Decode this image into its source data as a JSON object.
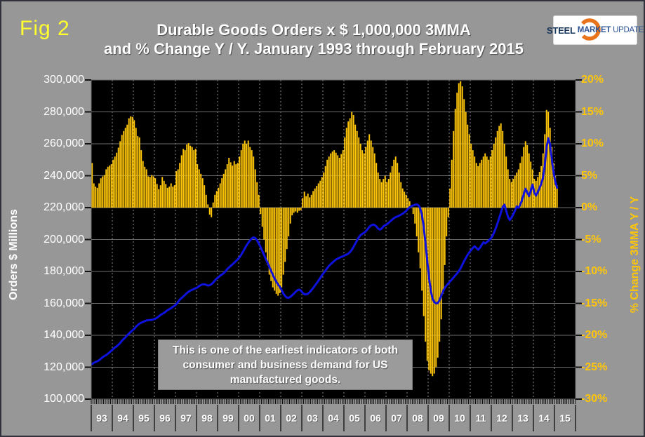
{
  "fig_label": "Fig 2",
  "title": {
    "line1": "Durable Goods Orders x $ 1,000,000 3MMA",
    "line2": "and % Change Y / Y. January 1993 through February 2015"
  },
  "logo": {
    "steel": "STEEL",
    "market": "MARKET",
    "update": "UPDATE"
  },
  "axes": {
    "left": {
      "label": "Orders $ Millions",
      "ticks": [
        "300,000",
        "280,000",
        "260,000",
        "240,000",
        "220,000",
        "200,000",
        "180,000",
        "160,000",
        "140,000",
        "120,000",
        "100,000"
      ]
    },
    "right": {
      "label": "% Change 3MMA Y / Y",
      "ticks": [
        "20%",
        "15%",
        "10%",
        "5%",
        "0%",
        "-5%",
        "-10%",
        "-15%",
        "-20%",
        "-25%",
        "-30%"
      ]
    },
    "x": {
      "year_labels": [
        "93",
        "94",
        "95",
        "96",
        "97",
        "98",
        "99",
        "00",
        "01",
        "02",
        "03",
        "04",
        "05",
        "06",
        "07",
        "08",
        "09",
        "10",
        "11",
        "12",
        "13",
        "14",
        "15"
      ]
    }
  },
  "annotation": {
    "line1": "This is one of the earliest indicators of both",
    "line2": "consumer and business demand for US",
    "line3": "manufactured goods."
  },
  "colors": {
    "background": "#979797",
    "plot_background": "#000000",
    "bar": "#FFC60A",
    "line": "#0F12DD",
    "grid": "#6E6E6E",
    "grid_dashed": "#8A8A8A",
    "tick": "#111111",
    "year_separator": "#3F3F3F",
    "left_axis_text": "#FFFFFF",
    "right_axis_text": "#FFC609",
    "fig_label_color": "#FFFF2E"
  },
  "chart_data": {
    "type": "combo",
    "x_start": "1993-01",
    "x_end": "2015-02",
    "x_axis_span": [
      "1993-01",
      "2015-12"
    ],
    "left_ylim": [
      100000,
      300000
    ],
    "right_ylim": [
      -30,
      20
    ],
    "grid": "on",
    "series": [
      {
        "name": "Durable Goods Orders 3MMA ($ millions)",
        "type": "line",
        "axis": "left",
        "values": [
          122000,
          122800,
          123300,
          123800,
          124400,
          125300,
          126300,
          127000,
          127600,
          128500,
          129400,
          130400,
          131400,
          132400,
          133100,
          134100,
          135200,
          136600,
          137700,
          138800,
          140100,
          141100,
          142100,
          143100,
          144100,
          145400,
          146400,
          147300,
          147900,
          148400,
          148900,
          149300,
          149500,
          149600,
          149700,
          150000,
          150400,
          151000,
          151900,
          152800,
          153400,
          154000,
          154900,
          155800,
          156400,
          157000,
          157900,
          158500,
          159500,
          161000,
          162400,
          163400,
          164400,
          165400,
          166400,
          167400,
          168000,
          168500,
          169000,
          169500,
          170000,
          170900,
          171500,
          171900,
          172000,
          171600,
          171100,
          171400,
          172000,
          173000,
          174400,
          175500,
          176400,
          177400,
          178100,
          179000,
          180100,
          181500,
          182500,
          183500,
          184500,
          185500,
          186600,
          187600,
          188900,
          190600,
          192500,
          194400,
          196300,
          198000,
          199500,
          200700,
          201300,
          200900,
          199500,
          197400,
          195300,
          192800,
          190300,
          187800,
          185300,
          182800,
          180300,
          177800,
          175500,
          173500,
          171800,
          170300,
          168200,
          166100,
          164600,
          163600,
          163500,
          164100,
          165100,
          166200,
          167300,
          168200,
          168600,
          168000,
          166600,
          165700,
          165600,
          166100,
          167100,
          168300,
          169700,
          171200,
          172700,
          174300,
          175900,
          177700,
          179100,
          180600,
          182100,
          183500,
          184600,
          185600,
          186600,
          187500,
          188100,
          188600,
          189100,
          189600,
          190100,
          190600,
          191200,
          192200,
          193600,
          195500,
          197500,
          199500,
          201400,
          202800,
          203600,
          204200,
          205200,
          206500,
          207900,
          208900,
          209400,
          209100,
          208200,
          206800,
          206200,
          206900,
          208300,
          209000,
          209600,
          210500,
          211500,
          212500,
          213400,
          214000,
          214500,
          215000,
          215600,
          216200,
          217000,
          218000,
          219300,
          220300,
          221000,
          221400,
          221800,
          222000,
          221500,
          219500,
          215000,
          207500,
          197500,
          186500,
          176000,
          168000,
          163000,
          160800,
          160000,
          160200,
          162000,
          164800,
          167600,
          169800,
          171200,
          172500,
          173800,
          175000,
          176300,
          177600,
          178800,
          180200,
          182000,
          184300,
          186500,
          188500,
          190400,
          192000,
          193400,
          194800,
          195800,
          194700,
          193600,
          194800,
          196600,
          198300,
          197600,
          198400,
          199400,
          200400,
          202000,
          204200,
          207000,
          210200,
          213500,
          217000,
          220500,
          221800,
          218000,
          214200,
          212200,
          213800,
          215800,
          218200,
          220800,
          219900,
          221800,
          224800,
          228500,
          231800,
          229600,
          227200,
          230800,
          234400,
          229400,
          227600,
          229800,
          232400,
          235000,
          239000,
          247000,
          258000,
          263500,
          259500,
          250000,
          242000,
          236000,
          232500
        ]
      },
      {
        "name": "% Change 3MMA Y/Y",
        "type": "bar",
        "axis": "right",
        "values": [
          7.0,
          3.8,
          3.3,
          3.1,
          3.8,
          4.6,
          4.9,
          5.1,
          6.0,
          6.4,
          6.6,
          6.8,
          7.5,
          8.0,
          8.6,
          9.4,
          10.4,
          11.4,
          12.0,
          12.5,
          13.0,
          14.0,
          14.3,
          14.2,
          13.7,
          12.5,
          11.2,
          11.0,
          9.0,
          7.3,
          6.4,
          6.0,
          4.9,
          4.8,
          5.1,
          4.9,
          4.6,
          3.7,
          2.9,
          3.5,
          4.8,
          4.2,
          3.7,
          3.1,
          3.3,
          3.8,
          3.3,
          3.5,
          5.7,
          6.0,
          7.0,
          8.2,
          9.2,
          9.0,
          9.9,
          10.1,
          9.7,
          9.5,
          9.0,
          9.2,
          6.8,
          6.0,
          5.3,
          4.6,
          3.5,
          2.0,
          0.5,
          -1.1,
          -1.5,
          0.8,
          2.0,
          2.6,
          3.1,
          3.8,
          4.6,
          5.3,
          6.0,
          6.8,
          7.8,
          7.1,
          6.6,
          7.3,
          6.8,
          7.0,
          8.0,
          9.0,
          10.0,
          10.5,
          10.0,
          10.5,
          9.5,
          9.0,
          8.0,
          6.0,
          4.0,
          2.0,
          -1.0,
          -3.0,
          -5.0,
          -7.0,
          -9.0,
          -10.5,
          -11.5,
          -12.5,
          -13.0,
          -13.5,
          -13.8,
          -13.4,
          -12.5,
          -10.5,
          -8.5,
          -6.5,
          -4.5,
          -2.5,
          -1.2,
          -0.8,
          -0.6,
          -0.8,
          -0.5,
          -0.4,
          1.5,
          2.5,
          1.8,
          2.2,
          1.6,
          2.0,
          2.6,
          3.0,
          3.4,
          3.8,
          4.2,
          4.8,
          5.5,
          6.5,
          7.5,
          8.0,
          8.5,
          8.8,
          9.0,
          8.6,
          8.2,
          7.8,
          8.4,
          9.0,
          11.0,
          12.5,
          13.5,
          14.0,
          15.0,
          14.5,
          13.0,
          12.0,
          11.0,
          10.0,
          9.0,
          8.5,
          9.5,
          10.5,
          11.5,
          10.5,
          9.5,
          8.5,
          7.0,
          5.5,
          4.5,
          4.0,
          4.5,
          5.0,
          4.0,
          4.5,
          5.5,
          6.5,
          7.5,
          8.0,
          7.0,
          5.5,
          4.0,
          3.0,
          2.5,
          2.0,
          1.5,
          1.0,
          0.0,
          -1.0,
          -2.5,
          -4.5,
          -7.0,
          -9.5,
          -13.0,
          -17.0,
          -21.0,
          -24.0,
          -25.5,
          -26.0,
          -26.4,
          -26.0,
          -25.0,
          -23.5,
          -21.0,
          -17.5,
          -13.5,
          -9.0,
          -4.5,
          -1.5,
          3.0,
          7.5,
          12.0,
          15.5,
          18.0,
          19.5,
          19.8,
          19.0,
          17.0,
          15.0,
          13.0,
          11.5,
          10.0,
          9.0,
          8.0,
          7.0,
          6.5,
          7.0,
          7.5,
          8.0,
          8.5,
          8.0,
          7.5,
          8.0,
          9.0,
          10.0,
          11.0,
          12.0,
          12.8,
          13.2,
          12.0,
          10.0,
          8.0,
          6.0,
          4.5,
          4.0,
          4.5,
          5.0,
          5.5,
          6.0,
          7.0,
          8.0,
          9.5,
          10.4,
          9.8,
          8.5,
          7.2,
          6.0,
          4.5,
          4.2,
          4.8,
          5.6,
          6.5,
          8.5,
          11.5,
          15.3,
          15.0,
          12.5,
          9.5,
          7.0,
          5.0,
          3.5
        ]
      }
    ]
  }
}
